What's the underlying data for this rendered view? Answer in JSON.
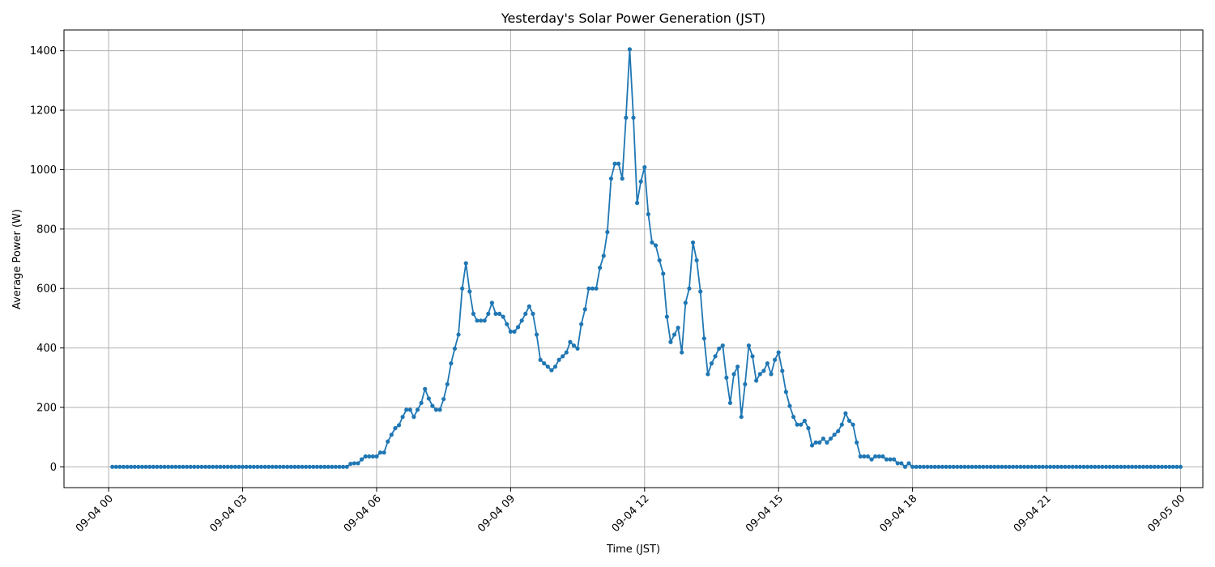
{
  "chart_data": {
    "type": "line",
    "title": "Yesterday's Solar Power Generation (JST)",
    "xlabel": "Time (JST)",
    "ylabel": "Average Power (W)",
    "x_start": "09-04 00:05",
    "x_interval_minutes": 5,
    "x_tick_labels": [
      "09-04 00",
      "09-04 03",
      "09-04 06",
      "09-04 09",
      "09-04 12",
      "09-04 15",
      "09-04 18",
      "09-04 21",
      "09-05 00"
    ],
    "y_ticks": [
      0,
      200,
      400,
      600,
      800,
      1000,
      1200,
      1400
    ],
    "xlim": [
      "09-03 23:00",
      "09-05 00:30"
    ],
    "ylim": [
      -70,
      1470
    ],
    "grid": true,
    "marker": "circle",
    "color": "#1f77b4",
    "series": [
      {
        "values": [
          0,
          0,
          0,
          0,
          0,
          0,
          0,
          0,
          0,
          0,
          0,
          0,
          0,
          0,
          0,
          0,
          0,
          0,
          0,
          0,
          0,
          0,
          0,
          0,
          0,
          0,
          0,
          0,
          0,
          0,
          0,
          0,
          0,
          0,
          0,
          0,
          0,
          0,
          0,
          0,
          0,
          0,
          0,
          0,
          0,
          0,
          0,
          0,
          0,
          0,
          0,
          0,
          0,
          0,
          0,
          0,
          0,
          0,
          0,
          0,
          0,
          0,
          0,
          0,
          10,
          12,
          12,
          25,
          35,
          35,
          35,
          35,
          48,
          48,
          85,
          108,
          130,
          140,
          168,
          192,
          192,
          168,
          192,
          215,
          262,
          230,
          205,
          192,
          192,
          228,
          278,
          348,
          398,
          445,
          600,
          685,
          590,
          515,
          492,
          492,
          492,
          515,
          552,
          515,
          515,
          505,
          480,
          455,
          455,
          470,
          492,
          515,
          540,
          515,
          445,
          360,
          348,
          337,
          325,
          337,
          360,
          372,
          385,
          420,
          408,
          398,
          480,
          530,
          600,
          600,
          600,
          670,
          710,
          790,
          970,
          1020,
          1020,
          970,
          1175,
          1405,
          1175,
          888,
          960,
          1008,
          850,
          755,
          745,
          695,
          650,
          505,
          420,
          445,
          468,
          385,
          552,
          600,
          755,
          695,
          590,
          432,
          312,
          348,
          372,
          398,
          408,
          300,
          215,
          312,
          337,
          168,
          278,
          408,
          372,
          290,
          312,
          323,
          348,
          312,
          360,
          385,
          323,
          252,
          205,
          168,
          142,
          142,
          155,
          130,
          72,
          82,
          82,
          95,
          82,
          95,
          108,
          120,
          142,
          180,
          155,
          142,
          82,
          35,
          35,
          35,
          25,
          35,
          35,
          35,
          25,
          25,
          25,
          12,
          12,
          0,
          12,
          0,
          0,
          0,
          0,
          0,
          0,
          0,
          0,
          0,
          0,
          0,
          0,
          0,
          0,
          0,
          0,
          0,
          0,
          0,
          0,
          0,
          0,
          0,
          0,
          0,
          0,
          0,
          0,
          0,
          0,
          0,
          0,
          0,
          0,
          0,
          0,
          0,
          0,
          0,
          0,
          0,
          0,
          0,
          0,
          0,
          0,
          0,
          0,
          0,
          0,
          0,
          0,
          0,
          0,
          0,
          0,
          0,
          0,
          0,
          0,
          0,
          0,
          0,
          0,
          0,
          0,
          0,
          0,
          0,
          0,
          0,
          0,
          0
        ]
      }
    ]
  }
}
